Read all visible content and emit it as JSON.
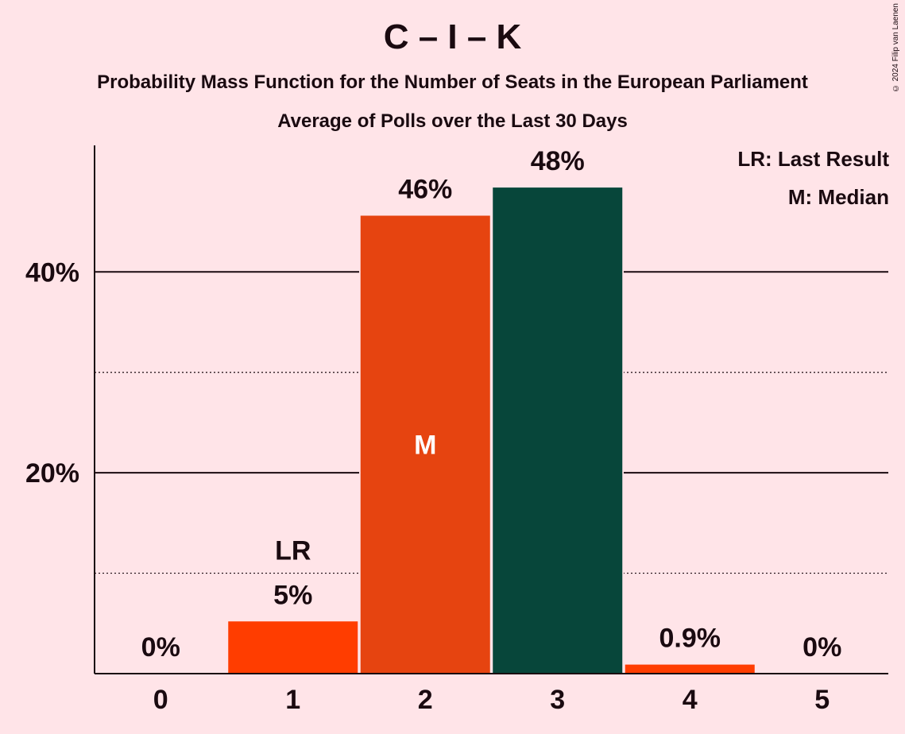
{
  "title": "C – I – K",
  "subtitle": "Probability Mass Function for the Number of Seats in the European Parliament",
  "subtitle2": "Average of Polls over the Last 30 Days",
  "copyright": "© 2024 Filip van Laenen",
  "legend": {
    "last_result": "LR: Last Result",
    "median": "M: Median"
  },
  "colors": {
    "background": "#FFE4E8",
    "primary": "#FF3D00",
    "median_bar": "#E64410",
    "highlight_bar": "#07463A"
  },
  "chart_data": {
    "type": "bar",
    "categories": [
      "0",
      "1",
      "2",
      "3",
      "4",
      "5"
    ],
    "values": [
      0,
      5.2,
      45.6,
      48.4,
      0.9,
      0
    ],
    "value_labels": [
      "0%",
      "5%",
      "46%",
      "48%",
      "0.9%",
      "0%"
    ],
    "bar_colors": [
      "#FF3D00",
      "#FF3D00",
      "#E64410",
      "#07463A",
      "#FF3D00",
      "#FF3D00"
    ],
    "annotations": [
      {
        "category": "1",
        "text": "LR"
      },
      {
        "category": "2",
        "text": "M"
      }
    ],
    "yticks": [
      20,
      40
    ],
    "ytick_labels": [
      "20%",
      "40%"
    ],
    "minor_gridlines": [
      10,
      30
    ],
    "ylim": [
      0,
      52.6
    ],
    "grid": true,
    "legend_position": "top-right"
  }
}
